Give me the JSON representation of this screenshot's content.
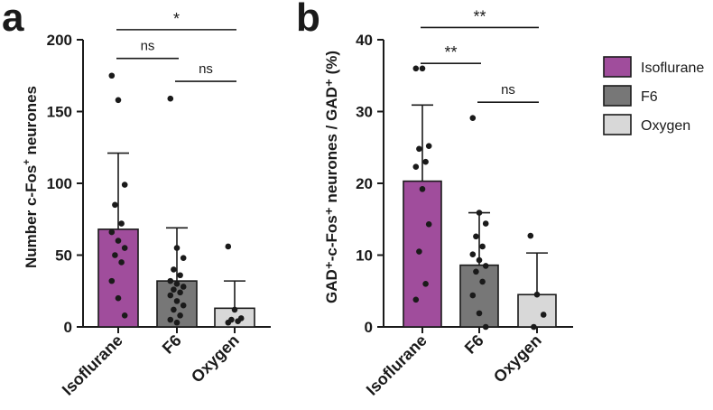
{
  "chart_data": [
    {
      "type": "bar",
      "panel": "a",
      "ylabel": "Number c-Fos",
      "ylabel_sup": "+",
      "ylabel_rest": " neurones",
      "ylim": [
        0,
        200
      ],
      "yticks": [
        0,
        50,
        100,
        150,
        200
      ],
      "categories": [
        "Isoflurane",
        "F6",
        "Oxygen"
      ],
      "colors": [
        "#a04d9c",
        "#777777",
        "#d8d8d8"
      ],
      "values": [
        68,
        32,
        13
      ],
      "sd_upper": [
        121,
        69,
        32
      ],
      "points": [
        [
          175,
          158,
          99,
          85,
          72,
          66,
          60,
          55,
          50,
          45,
          32,
          20,
          8
        ],
        [
          159,
          55,
          48,
          40,
          36,
          32,
          30,
          28,
          26,
          24,
          22,
          18,
          15,
          12,
          8,
          5,
          3
        ],
        [
          56,
          12,
          6,
          5,
          4,
          3
        ]
      ],
      "significance": [
        {
          "from": 0,
          "to": 1,
          "y": 187,
          "label": "ns",
          "kind": "text"
        },
        {
          "from": 1,
          "to": 2,
          "y": 171,
          "label": "ns",
          "kind": "text"
        },
        {
          "from": 0,
          "to": 2,
          "y": 207,
          "label": "*",
          "kind": "star"
        }
      ]
    },
    {
      "type": "bar",
      "panel": "b",
      "ylabel": "GAD⁺-c-Fos⁺ neurones / GAD⁺ (%)",
      "ylim": [
        0,
        40
      ],
      "yticks": [
        0,
        10,
        20,
        30,
        40
      ],
      "categories": [
        "Isoflurane",
        "F6",
        "Oxygen"
      ],
      "colors": [
        "#a04d9c",
        "#777777",
        "#d8d8d8"
      ],
      "values": [
        20.3,
        8.6,
        4.5
      ],
      "sd_upper": [
        30.9,
        15.9,
        10.3
      ],
      "points": [
        [
          36,
          36,
          25.2,
          24.8,
          23,
          22.3,
          19.2,
          14.3,
          10.5,
          6,
          3.8
        ],
        [
          29.1,
          15.9,
          14.4,
          12.6,
          11.2,
          10.1,
          9.3,
          8.5,
          7.7,
          6.3,
          4.4,
          1.9,
          0
        ],
        [
          12.7,
          4.5,
          1.7,
          0
        ]
      ],
      "significance": [
        {
          "from": 0,
          "to": 1,
          "y": 36.7,
          "label": "**",
          "kind": "star"
        },
        {
          "from": 1,
          "to": 2,
          "y": 31.3,
          "label": "ns",
          "kind": "text"
        },
        {
          "from": 0,
          "to": 2,
          "y": 41.7,
          "label": "**",
          "kind": "star"
        }
      ]
    }
  ],
  "panel_letters": [
    "a",
    "b"
  ],
  "legend": [
    {
      "label": "Isoflurane",
      "color": "#a04d9c"
    },
    {
      "label": "F6",
      "color": "#777777"
    },
    {
      "label": "Oxygen",
      "color": "#d8d8d8"
    }
  ]
}
